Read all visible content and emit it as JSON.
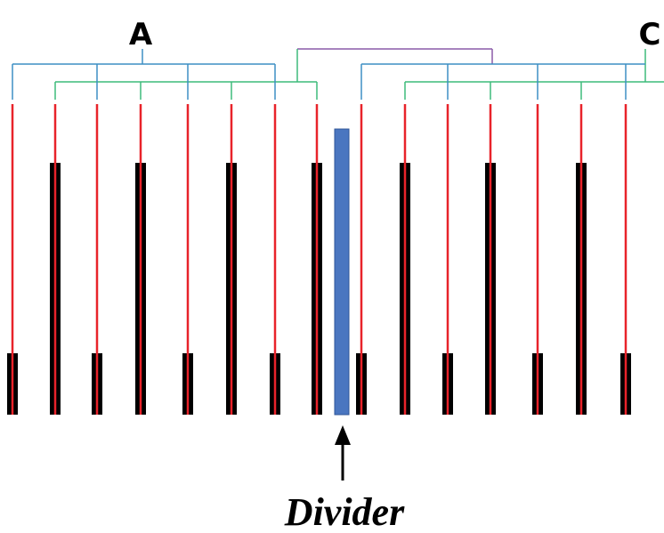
{
  "labels": {
    "a": "A",
    "c": "C",
    "divider": "Divider"
  }
}
